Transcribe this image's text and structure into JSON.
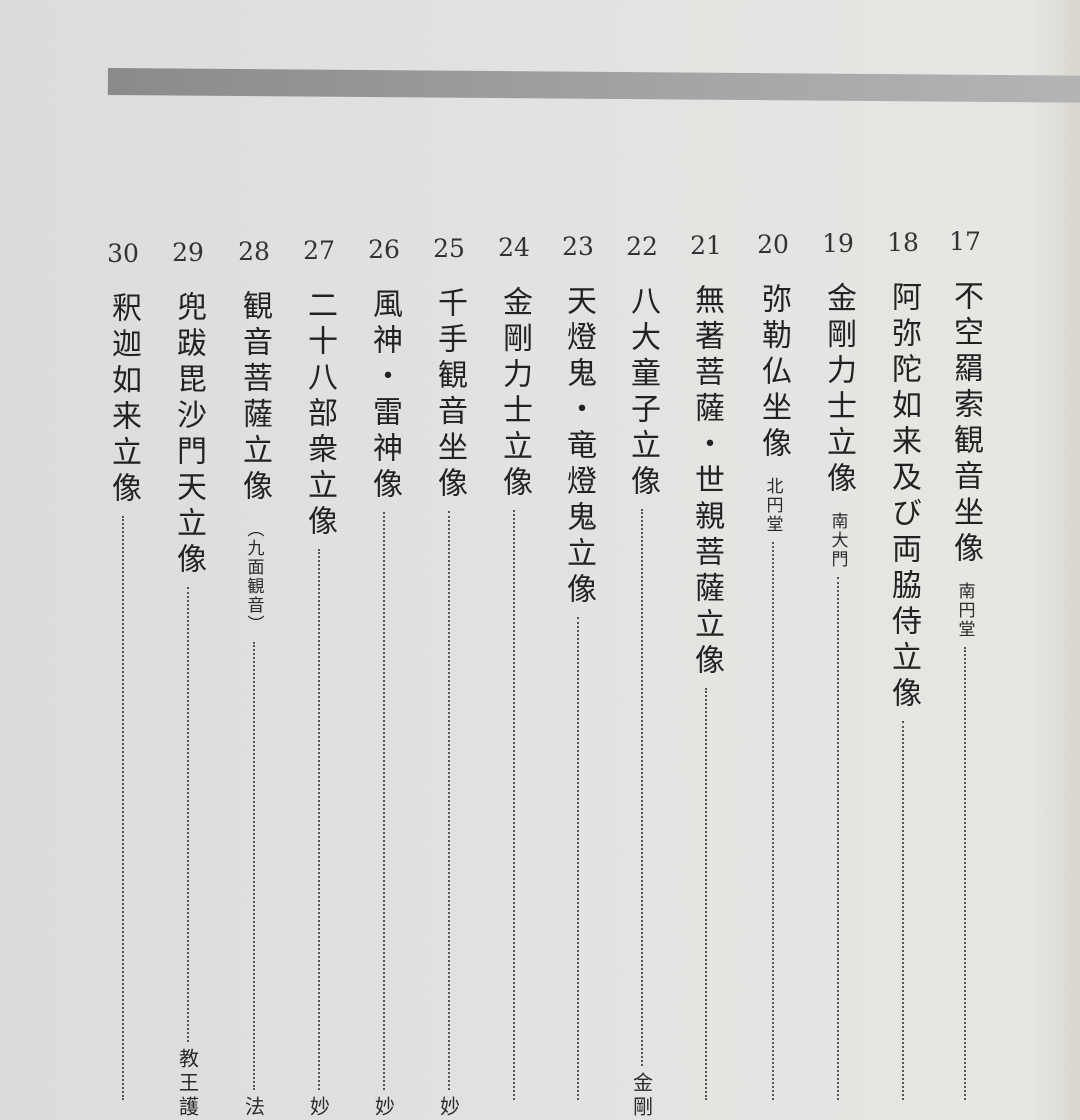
{
  "entries": [
    {
      "number": "17",
      "title": "不空羂索観音坐像",
      "note": "南円堂",
      "location": ""
    },
    {
      "number": "18",
      "title": "阿弥陀如来及び両脇侍立像",
      "note": "",
      "location": ""
    },
    {
      "number": "19",
      "title": "金剛力士立像",
      "note": "南大門",
      "location": ""
    },
    {
      "number": "20",
      "title": "弥勒仏坐像",
      "note": "北円堂",
      "location": ""
    },
    {
      "number": "21",
      "title": "無著菩薩・世親菩薩立像",
      "note": "",
      "location": ""
    },
    {
      "number": "22",
      "title": "八大童子立像",
      "note": "",
      "location": "金剛"
    },
    {
      "number": "23",
      "title": "天燈鬼・竜燈鬼立像",
      "note": "",
      "location": ""
    },
    {
      "number": "24",
      "title": "金剛力士立像",
      "note": "",
      "location": ""
    },
    {
      "number": "25",
      "title": "千手観音坐像",
      "note": "",
      "location": "妙"
    },
    {
      "number": "26",
      "title": "風神・雷神像",
      "note": "",
      "location": "妙"
    },
    {
      "number": "27",
      "title": "二十八部衆立像",
      "note": "",
      "location": "妙"
    },
    {
      "number": "28",
      "title": "観音菩薩立像",
      "note": "（九面観音）",
      "location": "法"
    },
    {
      "number": "29",
      "title": "兜跋毘沙門天立像",
      "note": "",
      "location": "教王護"
    },
    {
      "number": "30",
      "title": "釈迦如来立像",
      "note": "",
      "location": ""
    }
  ]
}
